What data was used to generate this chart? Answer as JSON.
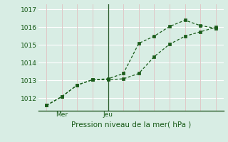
{
  "bg_color": "#d8ede4",
  "grid_color_h": "#ffffff",
  "grid_color_v": "#e0c8c8",
  "line_color": "#1a5c1a",
  "marker_color": "#1a5c1a",
  "axis_color": "#2a5c2a",
  "text_color": "#1a5c1a",
  "xlabel_text": "Pression niveau de la mer( hPa )",
  "xlabel_ticks_labels": [
    "Mer",
    "Jeu"
  ],
  "ylim": [
    1011.3,
    1017.3
  ],
  "yticks": [
    1012,
    1013,
    1014,
    1015,
    1016,
    1017
  ],
  "n_cols": 12,
  "mer_col": 1,
  "jeu_col": 4,
  "vline_col": 4,
  "series1_x": [
    0,
    1,
    2,
    3,
    4,
    5,
    6,
    7,
    8,
    9,
    10,
    11
  ],
  "series1_y": [
    1011.6,
    1012.1,
    1012.75,
    1013.05,
    1013.1,
    1013.4,
    1015.1,
    1015.5,
    1016.05,
    1016.4,
    1016.1,
    1015.95
  ],
  "series2_x": [
    0,
    1,
    2,
    3,
    4,
    5,
    6,
    7,
    8,
    9,
    10,
    11
  ],
  "series2_y": [
    1011.6,
    1012.1,
    1012.75,
    1013.05,
    1013.05,
    1013.1,
    1013.4,
    1014.35,
    1015.05,
    1015.5,
    1015.75,
    1016.0
  ]
}
